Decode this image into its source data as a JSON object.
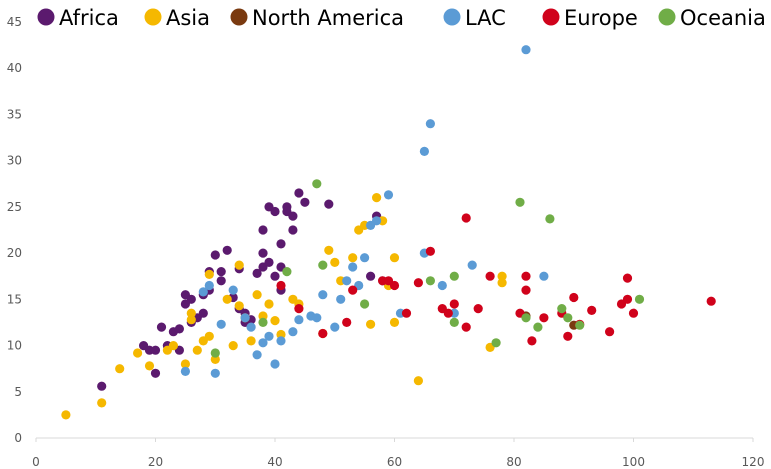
{
  "chart_data": {
    "type": "scatter",
    "title": "",
    "xlabel": "",
    "ylabel": "",
    "xlim": [
      0,
      120
    ],
    "ylim": [
      0,
      45
    ],
    "x_ticks": [
      "0",
      "20",
      "40",
      "60",
      "80",
      "100",
      "120"
    ],
    "y_ticks": [
      "0",
      "5",
      "10",
      "15",
      "20",
      "25",
      "30",
      "35",
      "40",
      "45"
    ],
    "grid": false,
    "legend_position": "top",
    "series": [
      {
        "name": "Africa",
        "color": "#5b1a6e",
        "points": [
          [
            11,
            5.6
          ],
          [
            18,
            10
          ],
          [
            19,
            9.5
          ],
          [
            20,
            7
          ],
          [
            20,
            9.5
          ],
          [
            21,
            12
          ],
          [
            22,
            10
          ],
          [
            23,
            11.5
          ],
          [
            24,
            11.8
          ],
          [
            24,
            9.5
          ],
          [
            25,
            15.5
          ],
          [
            25,
            14.5
          ],
          [
            26,
            15
          ],
          [
            26,
            12.5
          ],
          [
            27,
            13
          ],
          [
            28,
            13.5
          ],
          [
            28,
            15.5
          ],
          [
            29,
            16
          ],
          [
            29,
            18
          ],
          [
            30,
            19.8
          ],
          [
            31,
            17
          ],
          [
            31,
            18
          ],
          [
            32,
            20.3
          ],
          [
            33,
            15.2
          ],
          [
            34,
            14
          ],
          [
            34,
            18.3
          ],
          [
            35,
            12.5
          ],
          [
            35,
            13.5
          ],
          [
            36,
            12.8
          ],
          [
            37,
            17.8
          ],
          [
            38,
            18.5
          ],
          [
            38,
            20
          ],
          [
            38,
            22.5
          ],
          [
            39,
            19
          ],
          [
            39,
            25
          ],
          [
            40,
            24.5
          ],
          [
            40,
            17.5
          ],
          [
            41,
            21
          ],
          [
            41,
            18.5
          ],
          [
            42,
            24.5
          ],
          [
            42,
            25
          ],
          [
            43,
            24
          ],
          [
            43,
            22.5
          ],
          [
            44,
            26.5
          ],
          [
            45,
            25.5
          ],
          [
            41,
            16
          ],
          [
            49,
            25.3
          ],
          [
            56,
            17.5
          ],
          [
            57,
            24
          ]
        ]
      },
      {
        "name": "Asia",
        "color": "#f5b800",
        "points": [
          [
            5,
            2.5
          ],
          [
            11,
            3.8
          ],
          [
            14,
            7.5
          ],
          [
            17,
            9.2
          ],
          [
            19,
            7.8
          ],
          [
            22,
            9.5
          ],
          [
            23,
            10
          ],
          [
            25,
            8
          ],
          [
            26,
            13.5
          ],
          [
            26,
            12.8
          ],
          [
            27,
            9.5
          ],
          [
            28,
            10.5
          ],
          [
            29,
            11
          ],
          [
            29,
            17.7
          ],
          [
            30,
            8.5
          ],
          [
            32,
            15
          ],
          [
            33,
            10
          ],
          [
            34,
            14.3
          ],
          [
            34,
            18.7
          ],
          [
            35,
            13
          ],
          [
            36,
            10.5
          ],
          [
            37,
            15.5
          ],
          [
            38,
            13.2
          ],
          [
            39,
            14.5
          ],
          [
            40,
            12.7
          ],
          [
            41,
            11.2
          ],
          [
            43,
            15
          ],
          [
            44,
            14.5
          ],
          [
            48,
            11.3
          ],
          [
            49,
            20.3
          ],
          [
            50,
            19
          ],
          [
            51,
            17
          ],
          [
            53,
            19.5
          ],
          [
            54,
            22.5
          ],
          [
            55,
            23
          ],
          [
            56,
            12.3
          ],
          [
            57,
            26
          ],
          [
            58,
            23.5
          ],
          [
            59,
            16.5
          ],
          [
            60,
            19.5
          ],
          [
            60,
            12.5
          ],
          [
            64,
            6.2
          ],
          [
            76,
            9.8
          ],
          [
            78,
            17.5
          ],
          [
            78,
            16.8
          ]
        ]
      },
      {
        "name": "North America",
        "color": "#7a3a10",
        "points": [
          [
            82,
            13.2
          ],
          [
            90,
            12.2
          ]
        ]
      },
      {
        "name": "LAC",
        "color": "#5b9bd5",
        "points": [
          [
            25,
            7.2
          ],
          [
            28,
            15.8
          ],
          [
            29,
            16.5
          ],
          [
            30,
            7
          ],
          [
            31,
            12.3
          ],
          [
            33,
            16
          ],
          [
            35,
            13
          ],
          [
            36,
            12
          ],
          [
            37,
            9
          ],
          [
            38,
            10.3
          ],
          [
            39,
            11
          ],
          [
            40,
            8
          ],
          [
            41,
            10.5
          ],
          [
            43,
            11.5
          ],
          [
            44,
            12.8
          ],
          [
            46,
            13.2
          ],
          [
            47,
            13
          ],
          [
            48,
            15.5
          ],
          [
            50,
            12
          ],
          [
            51,
            15
          ],
          [
            52,
            17
          ],
          [
            53,
            18.5
          ],
          [
            54,
            16.5
          ],
          [
            55,
            19.5
          ],
          [
            56,
            23
          ],
          [
            57,
            23.5
          ],
          [
            58,
            17
          ],
          [
            59,
            26.3
          ],
          [
            61,
            13.5
          ],
          [
            65,
            31
          ],
          [
            65,
            20
          ],
          [
            66,
            34
          ],
          [
            68,
            16.5
          ],
          [
            70,
            13.5
          ],
          [
            73,
            18.7
          ],
          [
            82,
            42
          ],
          [
            85,
            17.5
          ]
        ]
      },
      {
        "name": "Europe",
        "color": "#d0021b",
        "points": [
          [
            41,
            16.5
          ],
          [
            44,
            14
          ],
          [
            48,
            11.3
          ],
          [
            52,
            12.5
          ],
          [
            53,
            16
          ],
          [
            58,
            17
          ],
          [
            59,
            17
          ],
          [
            60,
            16.5
          ],
          [
            62,
            13.5
          ],
          [
            64,
            16.8
          ],
          [
            66,
            20.2
          ],
          [
            68,
            14
          ],
          [
            69,
            13.5
          ],
          [
            70,
            14.5
          ],
          [
            72,
            23.8
          ],
          [
            72,
            12
          ],
          [
            74,
            14
          ],
          [
            76,
            17.5
          ],
          [
            81,
            13.5
          ],
          [
            82,
            17.5
          ],
          [
            82,
            16
          ],
          [
            83,
            10.5
          ],
          [
            85,
            13
          ],
          [
            88,
            13.5
          ],
          [
            89,
            11
          ],
          [
            90,
            15.2
          ],
          [
            91,
            12.3
          ],
          [
            93,
            13.8
          ],
          [
            96,
            11.5
          ],
          [
            98,
            14.5
          ],
          [
            99,
            17.3
          ],
          [
            99,
            15
          ],
          [
            100,
            13.5
          ],
          [
            113,
            14.8
          ]
        ]
      },
      {
        "name": "Oceania",
        "color": "#70ad47",
        "points": [
          [
            30,
            9.2
          ],
          [
            38,
            12.5
          ],
          [
            42,
            18
          ],
          [
            47,
            27.5
          ],
          [
            48,
            18.7
          ],
          [
            55,
            14.5
          ],
          [
            66,
            17
          ],
          [
            70,
            17.5
          ],
          [
            70,
            12.5
          ],
          [
            77,
            10.3
          ],
          [
            81,
            25.5
          ],
          [
            82,
            13
          ],
          [
            84,
            12
          ],
          [
            86,
            23.7
          ],
          [
            88,
            14
          ],
          [
            89,
            13
          ],
          [
            91,
            12.2
          ],
          [
            101,
            15
          ]
        ]
      }
    ]
  }
}
